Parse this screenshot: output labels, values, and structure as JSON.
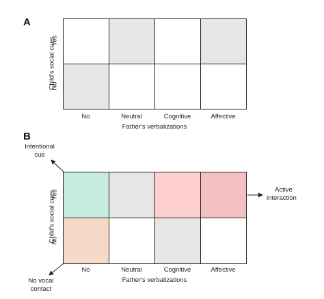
{
  "panels": [
    {
      "label": "A",
      "y_axis_title": "Child's social cues",
      "x_axis_title": "Father's verbalizations",
      "rows": [
        "Yes",
        "No"
      ],
      "columns": [
        "No",
        "Neutral",
        "Cognitive",
        "Affective"
      ],
      "cells": [
        [
          "#ffffff",
          "#e6e6e6",
          "#ffffff",
          "#e6e6e6"
        ],
        [
          "#e6e6e6",
          "#ffffff",
          "#ffffff",
          "#ffffff"
        ]
      ]
    },
    {
      "label": "B",
      "y_axis_title": "Child's social cues",
      "x_axis_title": "Father's verbalizations",
      "rows": [
        "Yes",
        "No"
      ],
      "columns": [
        "No",
        "Neutral",
        "Cognitive",
        "Affective"
      ],
      "cells": [
        [
          "#c6ecdf",
          "#e6e6e6",
          "#fdcfcf",
          "#f2c0c0"
        ],
        [
          "#f6dac8",
          "#ffffff",
          "#e6e6e6",
          "#ffffff"
        ]
      ],
      "annotations": {
        "intentional_cue": [
          "Intentional",
          "cue"
        ],
        "active_interaction": [
          "Active",
          "interaction"
        ],
        "no_vocal_contact": [
          "No vocal",
          "contact"
        ]
      }
    }
  ]
}
